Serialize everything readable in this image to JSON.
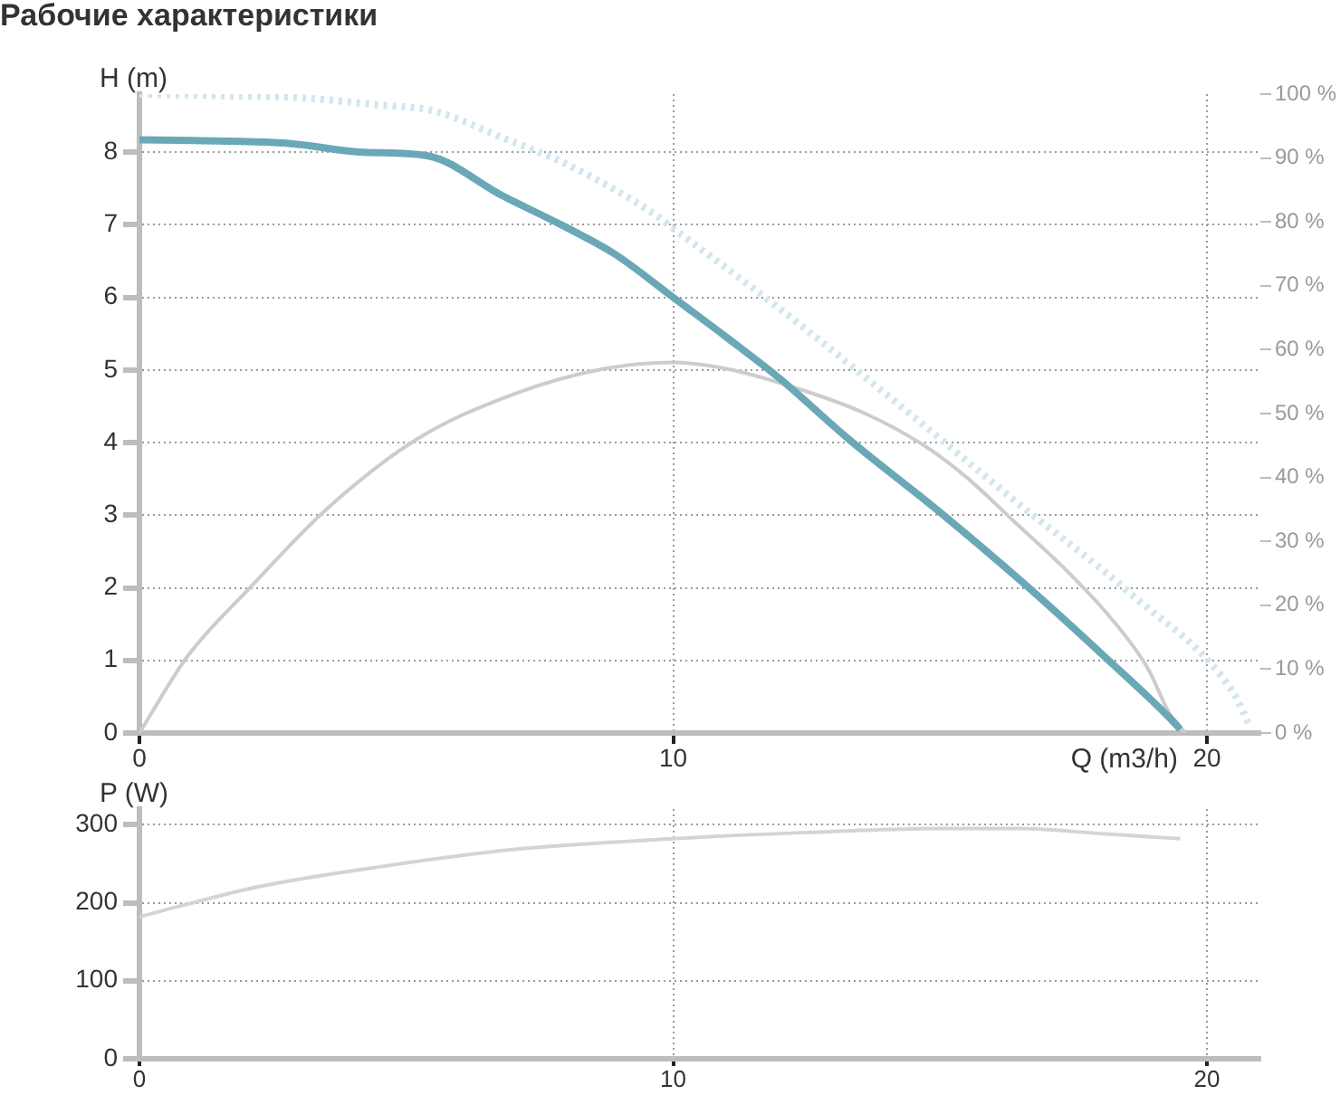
{
  "chart_data": [
    {
      "type": "line",
      "title": "Рабочие характеристики",
      "xlabel": "Q (m3/h)",
      "ylabel": "H (m)",
      "xlim": [
        0,
        21
      ],
      "xticks": [
        0,
        10,
        20
      ],
      "ylim": [
        0,
        8.8
      ],
      "yticks": [
        0,
        1,
        2,
        3,
        4,
        5,
        6,
        7,
        8
      ],
      "y2lim": [
        0,
        100
      ],
      "y2ticks": [
        {
          "value": 0,
          "label": "0 %"
        },
        {
          "value": 10,
          "label": "10 %"
        },
        {
          "value": 20,
          "label": "20 %"
        },
        {
          "value": 30,
          "label": "30 %"
        },
        {
          "value": 40,
          "label": "40 %"
        },
        {
          "value": 50,
          "label": "50 %"
        },
        {
          "value": 60,
          "label": "60 %"
        },
        {
          "value": 70,
          "label": "70 %"
        },
        {
          "value": 80,
          "label": "80 %"
        },
        {
          "value": 90,
          "label": "90 %"
        },
        {
          "value": 100,
          "label": "100 %"
        }
      ],
      "grid": true,
      "series": [
        {
          "color": "#6aa8b8",
          "x": [
            0,
            1,
            2.8,
            4.2,
            5.4,
            6.8,
            7.9,
            8.9,
            10,
            11,
            12,
            13.3,
            15,
            16.6,
            18.1,
            19.3,
            19.5
          ],
          "values": [
            8.17,
            8.16,
            8.12,
            8.0,
            7.95,
            7.4,
            7.0,
            6.6,
            6.0,
            5.45,
            4.88,
            4.04,
            3.04,
            2.04,
            1.04,
            0.21,
            0.05
          ]
        },
        {
          "color": "#d2e6ee",
          "line_style": "dotted",
          "x": [
            0,
            1.5,
            3,
            4.5,
            5.5,
            6.8,
            8.1,
            9.6,
            10,
            11.9,
            14.1,
            16.4,
            18.6,
            20.5,
            20.8
          ],
          "values": [
            8.8,
            8.78,
            8.75,
            8.65,
            8.57,
            8.2,
            7.8,
            7.17,
            6.95,
            5.9,
            4.6,
            3.2,
            1.9,
            0.55,
            0.1
          ]
        },
        {
          "color": "#cccccc",
          "axis": "y2",
          "x": [
            0,
            0.9,
            2.1,
            3.5,
            5.2,
            7,
            8.7,
            10,
            11,
            12.3,
            13.6,
            14.7,
            15.5,
            16.4,
            17.3,
            18.2,
            18.9,
            19.3,
            19.6
          ],
          "values": [
            0,
            12,
            23,
            35,
            46,
            53,
            57,
            58,
            57,
            54,
            50,
            45,
            40,
            33,
            26,
            18,
            10,
            3,
            0
          ]
        }
      ]
    },
    {
      "type": "line",
      "ylabel": "P (W)",
      "xlim": [
        0,
        21
      ],
      "xticks": [
        0,
        10,
        20
      ],
      "ylim": [
        0,
        320
      ],
      "yticks": [
        0,
        100,
        200,
        300
      ],
      "grid": true,
      "series": [
        {
          "color": "#d4d4d4",
          "x": [
            0,
            2.2,
            4.6,
            7,
            10,
            12.5,
            14.9,
            16.5,
            18.1,
            19.5
          ],
          "values": [
            182,
            220,
            247,
            268,
            282,
            290,
            295,
            295,
            288,
            282
          ]
        }
      ]
    }
  ]
}
